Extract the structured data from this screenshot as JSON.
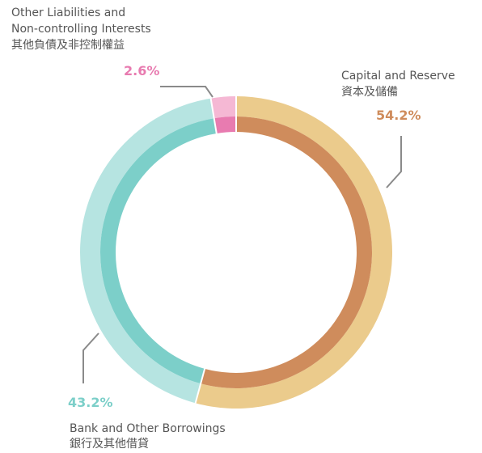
{
  "chart_data": {
    "type": "pie",
    "categories": [
      [
        "Capital and Reserve",
        "資本及儲備"
      ],
      [
        "Bank and Other Borrowings",
        "銀行及其他借貸"
      ],
      [
        "Other Liabilities and",
        "Non-controlling Interests",
        "其他負債及非控制權益"
      ]
    ],
    "values": [
      54.2,
      43.2,
      2.6
    ],
    "value_labels": [
      "54.2%",
      "43.2%",
      "2.6%"
    ],
    "colors": [
      "#cf8c5c",
      "#7ccfc9",
      "#e87bb0"
    ],
    "ring_colors": [
      "#ebcb8c",
      "#b6e4e1",
      "#f5b8d4"
    ]
  }
}
